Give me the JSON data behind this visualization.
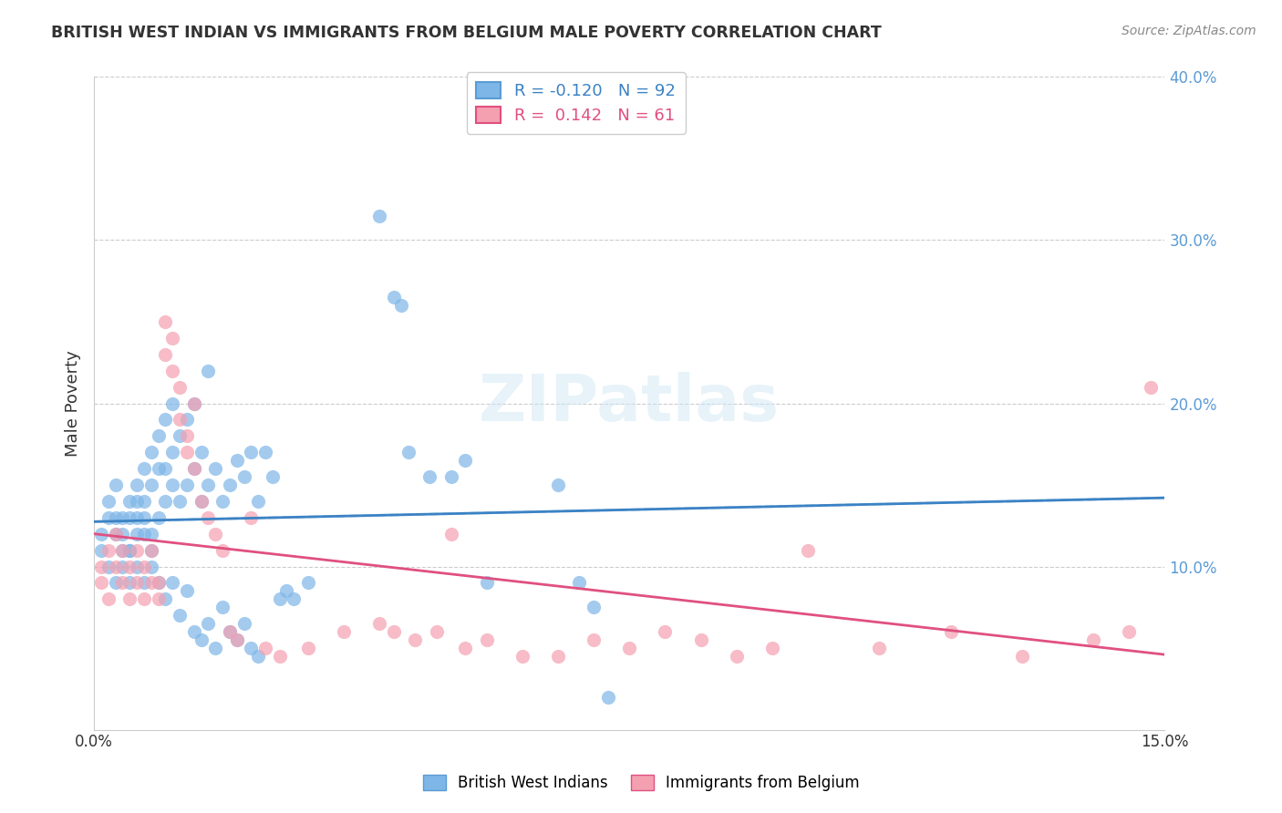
{
  "title": "BRITISH WEST INDIAN VS IMMIGRANTS FROM BELGIUM MALE POVERTY CORRELATION CHART",
  "source": "Source: ZipAtlas.com",
  "xlabel_bottom": "",
  "ylabel": "Male Poverty",
  "x_min": 0.0,
  "x_max": 0.15,
  "y_min": 0.0,
  "y_max": 0.4,
  "x_ticks": [
    0.0,
    0.05,
    0.1,
    0.15
  ],
  "x_tick_labels": [
    "0.0%",
    "",
    "",
    "15.0%"
  ],
  "y_tick_labels_right": [
    "10.0%",
    "20.0%",
    "30.0%",
    "40.0%"
  ],
  "y_ticks_right": [
    0.1,
    0.2,
    0.3,
    0.4
  ],
  "legend_blue_r": "-0.120",
  "legend_blue_n": "92",
  "legend_pink_r": "0.142",
  "legend_pink_n": "61",
  "legend_label_blue": "British West Indians",
  "legend_label_pink": "Immigrants from Belgium",
  "blue_color": "#7EB6E8",
  "pink_color": "#F4A0B0",
  "blue_line_color": "#3B82C4",
  "pink_line_color": "#E05080",
  "blue_dashed_color": "#A8CDE8",
  "watermark": "ZIPatlas",
  "blue_scatter_x": [
    0.001,
    0.002,
    0.003,
    0.003,
    0.004,
    0.004,
    0.005,
    0.005,
    0.005,
    0.006,
    0.006,
    0.006,
    0.007,
    0.007,
    0.007,
    0.008,
    0.008,
    0.008,
    0.009,
    0.009,
    0.009,
    0.01,
    0.01,
    0.01,
    0.011,
    0.011,
    0.011,
    0.012,
    0.012,
    0.013,
    0.013,
    0.014,
    0.014,
    0.015,
    0.015,
    0.016,
    0.016,
    0.017,
    0.018,
    0.019,
    0.02,
    0.021,
    0.022,
    0.023,
    0.024,
    0.025,
    0.026,
    0.027,
    0.028,
    0.03,
    0.001,
    0.002,
    0.002,
    0.003,
    0.003,
    0.004,
    0.004,
    0.005,
    0.005,
    0.006,
    0.006,
    0.007,
    0.007,
    0.008,
    0.008,
    0.009,
    0.01,
    0.011,
    0.012,
    0.013,
    0.014,
    0.015,
    0.016,
    0.017,
    0.018,
    0.019,
    0.02,
    0.021,
    0.022,
    0.023,
    0.04,
    0.042,
    0.043,
    0.044,
    0.047,
    0.05,
    0.052,
    0.055,
    0.065,
    0.068,
    0.07,
    0.072
  ],
  "blue_scatter_y": [
    0.12,
    0.14,
    0.13,
    0.15,
    0.12,
    0.13,
    0.14,
    0.11,
    0.13,
    0.12,
    0.14,
    0.15,
    0.13,
    0.14,
    0.16,
    0.12,
    0.15,
    0.17,
    0.13,
    0.16,
    0.18,
    0.14,
    0.16,
    0.19,
    0.15,
    0.17,
    0.2,
    0.14,
    0.18,
    0.15,
    0.19,
    0.16,
    0.2,
    0.14,
    0.17,
    0.15,
    0.22,
    0.16,
    0.14,
    0.15,
    0.165,
    0.155,
    0.17,
    0.14,
    0.17,
    0.155,
    0.08,
    0.085,
    0.08,
    0.09,
    0.11,
    0.1,
    0.13,
    0.09,
    0.12,
    0.11,
    0.1,
    0.09,
    0.11,
    0.1,
    0.13,
    0.09,
    0.12,
    0.1,
    0.11,
    0.09,
    0.08,
    0.09,
    0.07,
    0.085,
    0.06,
    0.055,
    0.065,
    0.05,
    0.075,
    0.06,
    0.055,
    0.065,
    0.05,
    0.045,
    0.315,
    0.265,
    0.26,
    0.17,
    0.155,
    0.155,
    0.165,
    0.09,
    0.15,
    0.09,
    0.075,
    0.02
  ],
  "pink_scatter_x": [
    0.001,
    0.001,
    0.002,
    0.002,
    0.003,
    0.003,
    0.004,
    0.004,
    0.005,
    0.005,
    0.006,
    0.006,
    0.007,
    0.007,
    0.008,
    0.008,
    0.009,
    0.009,
    0.01,
    0.01,
    0.011,
    0.011,
    0.012,
    0.012,
    0.013,
    0.013,
    0.014,
    0.014,
    0.015,
    0.016,
    0.017,
    0.018,
    0.019,
    0.02,
    0.022,
    0.024,
    0.026,
    0.03,
    0.035,
    0.04,
    0.042,
    0.045,
    0.048,
    0.05,
    0.052,
    0.055,
    0.06,
    0.065,
    0.07,
    0.075,
    0.08,
    0.085,
    0.09,
    0.095,
    0.1,
    0.11,
    0.12,
    0.13,
    0.14,
    0.145,
    0.148
  ],
  "pink_scatter_y": [
    0.09,
    0.1,
    0.11,
    0.08,
    0.1,
    0.12,
    0.09,
    0.11,
    0.08,
    0.1,
    0.09,
    0.11,
    0.08,
    0.1,
    0.09,
    0.11,
    0.08,
    0.09,
    0.23,
    0.25,
    0.24,
    0.22,
    0.21,
    0.19,
    0.17,
    0.18,
    0.16,
    0.2,
    0.14,
    0.13,
    0.12,
    0.11,
    0.06,
    0.055,
    0.13,
    0.05,
    0.045,
    0.05,
    0.06,
    0.065,
    0.06,
    0.055,
    0.06,
    0.12,
    0.05,
    0.055,
    0.045,
    0.045,
    0.055,
    0.05,
    0.06,
    0.055,
    0.045,
    0.05,
    0.11,
    0.05,
    0.06,
    0.045,
    0.055,
    0.06,
    0.21
  ]
}
